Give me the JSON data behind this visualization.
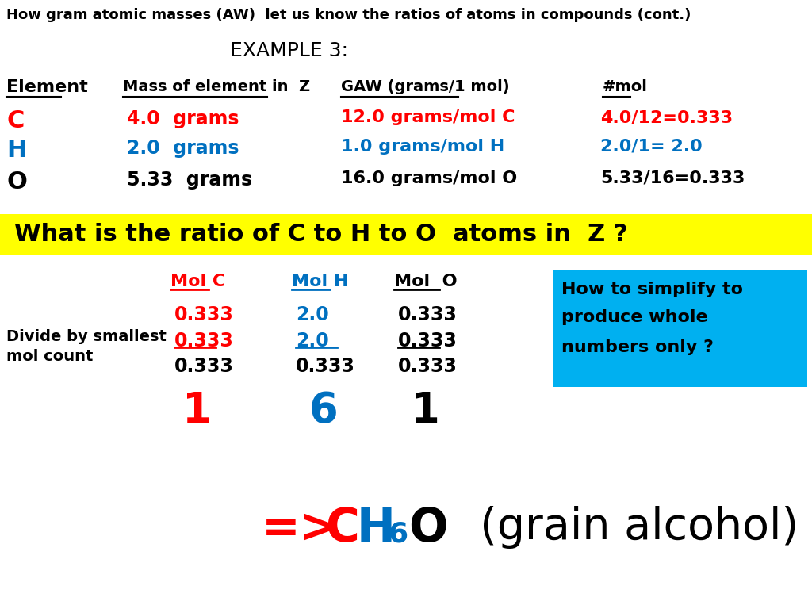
{
  "title_top": "How gram atomic masses (AW)  let us know the ratios of atoms in compounds (cont.)",
  "example_label": "EXAMPLE 3:",
  "col_headers": [
    "Element",
    "Mass of element in  Z",
    "GAW (grams/1 mol)",
    "#mol"
  ],
  "elements": [
    "C",
    "H",
    "O"
  ],
  "element_colors": [
    "#ff0000",
    "#0070c0",
    "#000000"
  ],
  "mass_values": [
    "4.0  grams",
    "2.0  grams",
    "5.33  grams"
  ],
  "mass_colors": [
    "#ff0000",
    "#0070c0",
    "#000000"
  ],
  "gaw_values": [
    "12.0 grams/mol C",
    "1.0 grams/mol H",
    "16.0 grams/mol O"
  ],
  "gaw_colors": [
    "#ff0000",
    "#0070c0",
    "#000000"
  ],
  "mol_values": [
    "4.0/12=0.333",
    "2.0/1= 2.0",
    "5.33/16=0.333"
  ],
  "mol_colors": [
    "#ff0000",
    "#0070c0",
    "#000000"
  ],
  "question_bg": "#ffff00",
  "question_text": "What is the ratio of C to H to O  atoms in  Z ?",
  "mol_col_headers": [
    "Mol C",
    "Mol H",
    "Mol  O"
  ],
  "mol_col_colors": [
    "#ff0000",
    "#0070c0",
    "#000000"
  ],
  "mol_row1": [
    "0.333",
    "2.0",
    "0.333"
  ],
  "mol_row1_colors": [
    "#ff0000",
    "#0070c0",
    "#000000"
  ],
  "divide_label": [
    "Divide by smallest",
    "mol count"
  ],
  "mol_row2_num": [
    "0.333",
    "2.0",
    "0.333"
  ],
  "mol_row2_denom": [
    "0.333",
    "0.333",
    "0.333"
  ],
  "mol_row2_num_colors": [
    "#ff0000",
    "#0070c0",
    "#000000"
  ],
  "result_row": [
    "1",
    "6",
    "1"
  ],
  "result_colors": [
    "#ff0000",
    "#0070c0",
    "#000000"
  ],
  "cyan_box_text": [
    "How to simplify to",
    "produce whole",
    "numbers only ?"
  ],
  "cyan_box_color": "#00b0f0",
  "bg_color": "#ffffff"
}
